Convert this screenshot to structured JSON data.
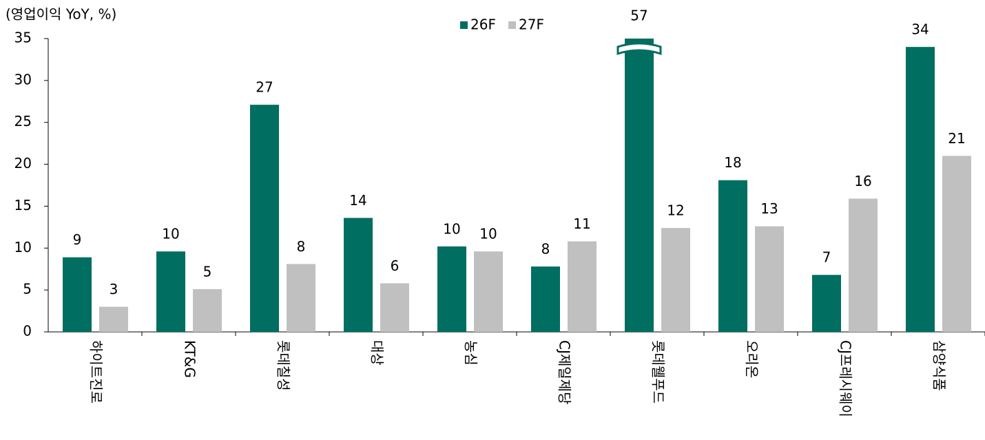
{
  "chart_data": {
    "type": "bar",
    "title": "(영업이익 YoY, %)",
    "categories": [
      "하이트진로",
      "KT&G",
      "롯데칠성",
      "대상",
      "농심",
      "CJ제일제당",
      "롯데웰푸드",
      "오리온",
      "CJ프레시웨이",
      "삼양식품"
    ],
    "series": [
      {
        "name": "26F",
        "color": "#006e60",
        "values": [
          8.9,
          9.6,
          27.1,
          13.6,
          10.2,
          7.8,
          57,
          18.1,
          6.8,
          34.0
        ],
        "value_labels": [
          "9",
          "10",
          "27",
          "14",
          "10",
          "8",
          "57",
          "18",
          "7",
          "34"
        ]
      },
      {
        "name": "27F",
        "color": "#c0c0c0",
        "values": [
          3.0,
          5.1,
          8.1,
          5.8,
          9.6,
          10.8,
          12.4,
          12.6,
          15.9,
          21.0
        ],
        "value_labels": [
          "3",
          "5",
          "8",
          "6",
          "10",
          "11",
          "12",
          "13",
          "16",
          "21"
        ]
      }
    ],
    "ylim": [
      0,
      35
    ],
    "yticks": [
      0,
      5,
      10,
      15,
      20,
      25,
      30,
      35
    ],
    "grid": false
  }
}
